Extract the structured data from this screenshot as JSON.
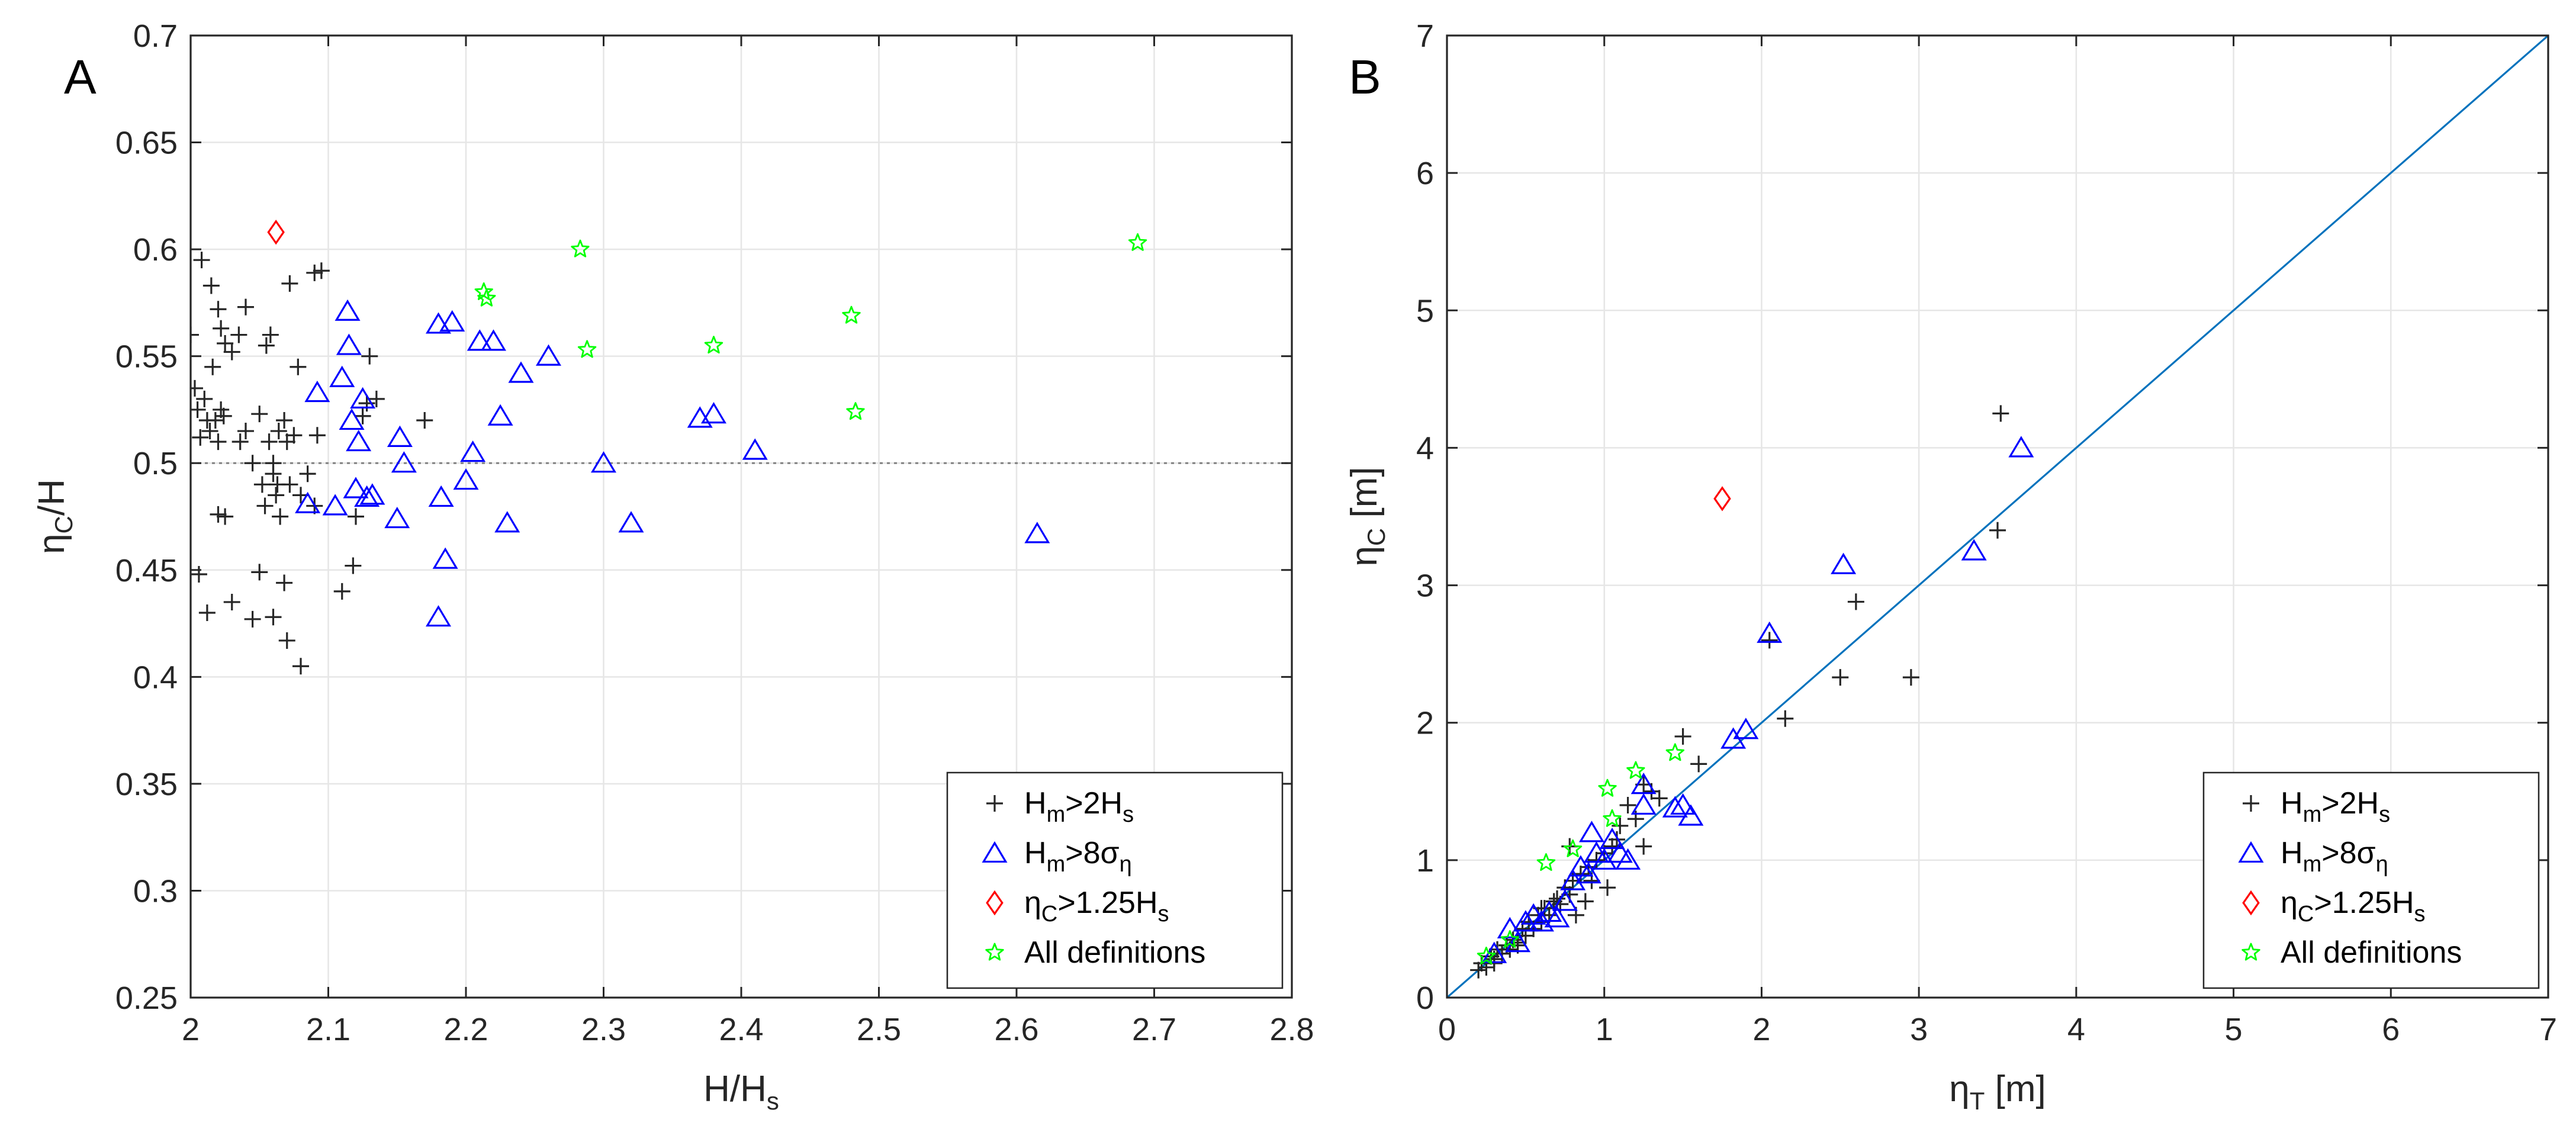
{
  "colors": {
    "black": "#262626",
    "blue": "#0000ff",
    "red": "#ff0000",
    "green": "#00ff00",
    "line": "#0072bd",
    "grid": "#e6e6e6",
    "refline": "#808080"
  },
  "chart_data": [
    {
      "type": "scatter",
      "panel_letter": "A",
      "xlabel": "H/H",
      "xlabel_sub": "s",
      "ylabel": "η",
      "ylabel_sub": "C",
      "ylabel_tail": "/H",
      "xlim": [
        2,
        2.8
      ],
      "ylim": [
        0.25,
        0.7
      ],
      "xticks": [
        2,
        2.1,
        2.2,
        2.3,
        2.4,
        2.5,
        2.6,
        2.7,
        2.8
      ],
      "xtick_labels": [
        "2",
        "2.1",
        "2.2",
        "2.3",
        "2.4",
        "2.5",
        "2.6",
        "2.7",
        "2.8"
      ],
      "yticks": [
        0.25,
        0.3,
        0.35,
        0.4,
        0.45,
        0.5,
        0.55,
        0.6,
        0.65,
        0.7
      ],
      "ytick_labels": [
        "0.25",
        "0.3",
        "0.35",
        "0.4",
        "0.45",
        "0.5",
        "0.55",
        "0.6",
        "0.65",
        "0.7"
      ],
      "grid": true,
      "reference_line": {
        "y": 0.5,
        "style": "dotted"
      },
      "legend_position": "bottom-right",
      "legend": [
        {
          "marker": "plus",
          "color": "black",
          "parts": [
            {
              "t": "H"
            },
            {
              "t": "m",
              "sub": true
            },
            {
              "t": ">2H"
            },
            {
              "t": "s",
              "sub": true
            }
          ]
        },
        {
          "marker": "triangle",
          "color": "blue",
          "parts": [
            {
              "t": "H"
            },
            {
              "t": "m",
              "sub": true
            },
            {
              "t": ">8σ"
            },
            {
              "t": "η",
              "sub": true
            }
          ]
        },
        {
          "marker": "diamond",
          "color": "red",
          "parts": [
            {
              "t": "η"
            },
            {
              "t": "C",
              "sub": true
            },
            {
              "t": ">1.25H"
            },
            {
              "t": "s",
              "sub": true
            }
          ]
        },
        {
          "marker": "star",
          "color": "green",
          "parts": [
            {
              "t": "All definitions"
            }
          ]
        }
      ],
      "series": [
        {
          "name": "Hm>2Hs",
          "marker": "plus",
          "color": "black",
          "points": [
            [
              2.0,
              0.56
            ],
            [
              2.003,
              0.535
            ],
            [
              2.005,
              0.525
            ],
            [
              2.007,
              0.512
            ],
            [
              2.008,
              0.595
            ],
            [
              2.01,
              0.53
            ],
            [
              2.012,
              0.52
            ],
            [
              2.014,
              0.515
            ],
            [
              2.016,
              0.545
            ],
            [
              2.018,
              0.52
            ],
            [
              2.02,
              0.51
            ],
            [
              2.022,
              0.525
            ],
            [
              2.024,
              0.522
            ],
            [
              2.006,
              0.448
            ],
            [
              2.012,
              0.43
            ],
            [
              2.015,
              0.583
            ],
            [
              2.02,
              0.572
            ],
            [
              2.022,
              0.563
            ],
            [
              2.025,
              0.556
            ],
            [
              2.03,
              0.552
            ],
            [
              2.035,
              0.56
            ],
            [
              2.04,
              0.573
            ],
            [
              2.036,
              0.51
            ],
            [
              2.04,
              0.515
            ],
            [
              2.045,
              0.5
            ],
            [
              2.05,
              0.523
            ],
            [
              2.052,
              0.49
            ],
            [
              2.054,
              0.48
            ],
            [
              2.057,
              0.51
            ],
            [
              2.06,
              0.495
            ],
            [
              2.062,
              0.485
            ],
            [
              2.065,
              0.475
            ],
            [
              2.064,
              0.515
            ],
            [
              2.068,
              0.52
            ],
            [
              2.07,
              0.51
            ],
            [
              2.072,
              0.49
            ],
            [
              2.075,
              0.513
            ],
            [
              2.055,
              0.555
            ],
            [
              2.058,
              0.56
            ],
            [
              2.025,
              0.475
            ],
            [
              2.02,
              0.476
            ],
            [
              2.03,
              0.435
            ],
            [
              2.045,
              0.427
            ],
            [
              2.05,
              0.449
            ],
            [
              2.06,
              0.428
            ],
            [
              2.068,
              0.444
            ],
            [
              2.07,
              0.417
            ],
            [
              2.08,
              0.405
            ],
            [
              2.072,
              0.584
            ],
            [
              2.09,
              0.589
            ],
            [
              2.095,
              0.59
            ],
            [
              2.078,
              0.545
            ],
            [
              2.085,
              0.495
            ],
            [
              2.09,
              0.48
            ],
            [
              2.092,
              0.513
            ],
            [
              2.11,
              0.44
            ],
            [
              2.118,
              0.452
            ],
            [
              2.12,
              0.475
            ],
            [
              2.125,
              0.522
            ],
            [
              2.128,
              0.528
            ],
            [
              2.13,
              0.55
            ],
            [
              2.135,
              0.53
            ],
            [
              2.17,
              0.52
            ],
            [
              2.06,
              0.5
            ],
            [
              2.063,
              0.49
            ],
            [
              2.08,
              0.485
            ]
          ]
        },
        {
          "name": "Hm>8ση",
          "marker": "triangle",
          "color": "blue",
          "points": [
            [
              2.085,
              0.481
            ],
            [
              2.092,
              0.533
            ],
            [
              2.105,
              0.48
            ],
            [
              2.11,
              0.54
            ],
            [
              2.114,
              0.571
            ],
            [
              2.115,
              0.555
            ],
            [
              2.117,
              0.52
            ],
            [
              2.12,
              0.488
            ],
            [
              2.122,
              0.51
            ],
            [
              2.125,
              0.53
            ],
            [
              2.128,
              0.484
            ],
            [
              2.132,
              0.485
            ],
            [
              2.15,
              0.474
            ],
            [
              2.152,
              0.512
            ],
            [
              2.155,
              0.5
            ],
            [
              2.18,
              0.565
            ],
            [
              2.182,
              0.484
            ],
            [
              2.185,
              0.455
            ],
            [
              2.18,
              0.428
            ],
            [
              2.19,
              0.566
            ],
            [
              2.2,
              0.492
            ],
            [
              2.205,
              0.505
            ],
            [
              2.21,
              0.557
            ],
            [
              2.22,
              0.557
            ],
            [
              2.225,
              0.522
            ],
            [
              2.23,
              0.472
            ],
            [
              2.24,
              0.542
            ],
            [
              2.26,
              0.55
            ],
            [
              2.3,
              0.5
            ],
            [
              2.32,
              0.472
            ],
            [
              2.37,
              0.521
            ],
            [
              2.38,
              0.523
            ],
            [
              2.41,
              0.506
            ],
            [
              2.615,
              0.467
            ]
          ]
        },
        {
          "name": "ηC>1.25Hs",
          "marker": "diamond",
          "color": "red",
          "points": [
            [
              2.062,
              0.608
            ]
          ]
        },
        {
          "name": "All definitions",
          "marker": "star",
          "color": "green",
          "points": [
            [
              2.213,
              0.58
            ],
            [
              2.215,
              0.577
            ],
            [
              2.283,
              0.6
            ],
            [
              2.288,
              0.553
            ],
            [
              2.38,
              0.555
            ],
            [
              2.48,
              0.569
            ],
            [
              2.483,
              0.524
            ],
            [
              2.688,
              0.603
            ]
          ]
        }
      ]
    },
    {
      "type": "scatter",
      "panel_letter": "B",
      "xlabel": "η",
      "xlabel_sub": "T",
      "xlabel_tail": " [m]",
      "ylabel": "η",
      "ylabel_sub": "C",
      "ylabel_tail": " [m]",
      "xlim": [
        0,
        7
      ],
      "ylim": [
        0,
        7
      ],
      "xticks": [
        0,
        1,
        2,
        3,
        4,
        5,
        6,
        7
      ],
      "xtick_labels": [
        "0",
        "1",
        "2",
        "3",
        "4",
        "5",
        "6",
        "7"
      ],
      "yticks": [
        0,
        1,
        2,
        3,
        4,
        5,
        6,
        7
      ],
      "ytick_labels": [
        "0",
        "1",
        "2",
        "3",
        "4",
        "5",
        "6",
        "7"
      ],
      "grid": true,
      "reference_line": {
        "from": [
          0,
          0
        ],
        "to": [
          7,
          7
        ],
        "style": "solid"
      },
      "legend_position": "bottom-right",
      "legend": [
        {
          "marker": "plus",
          "color": "black",
          "parts": [
            {
              "t": "H"
            },
            {
              "t": "m",
              "sub": true
            },
            {
              "t": ">2H"
            },
            {
              "t": "s",
              "sub": true
            }
          ]
        },
        {
          "marker": "triangle",
          "color": "blue",
          "parts": [
            {
              "t": "H"
            },
            {
              "t": "m",
              "sub": true
            },
            {
              "t": ">8σ"
            },
            {
              "t": "η",
              "sub": true
            }
          ]
        },
        {
          "marker": "diamond",
          "color": "red",
          "parts": [
            {
              "t": "η"
            },
            {
              "t": "C",
              "sub": true
            },
            {
              "t": ">1.25H"
            },
            {
              "t": "s",
              "sub": true
            }
          ]
        },
        {
          "marker": "star",
          "color": "green",
          "parts": [
            {
              "t": "All definitions"
            }
          ]
        }
      ],
      "series": [
        {
          "name": "Hm>2Hs",
          "marker": "plus",
          "color": "black",
          "points": [
            [
              0.2,
              0.2
            ],
            [
              0.22,
              0.25
            ],
            [
              0.25,
              0.22
            ],
            [
              0.28,
              0.3
            ],
            [
              0.3,
              0.28
            ],
            [
              0.32,
              0.35
            ],
            [
              0.35,
              0.32
            ],
            [
              0.38,
              0.38
            ],
            [
              0.4,
              0.35
            ],
            [
              0.42,
              0.42
            ],
            [
              0.45,
              0.4
            ],
            [
              0.48,
              0.5
            ],
            [
              0.5,
              0.45
            ],
            [
              0.52,
              0.55
            ],
            [
              0.55,
              0.5
            ],
            [
              0.58,
              0.6
            ],
            [
              0.6,
              0.55
            ],
            [
              0.62,
              0.65
            ],
            [
              0.65,
              0.6
            ],
            [
              0.68,
              0.7
            ],
            [
              0.7,
              0.72
            ],
            [
              0.72,
              0.68
            ],
            [
              0.75,
              0.8
            ],
            [
              0.78,
              0.75
            ],
            [
              0.8,
              0.85
            ],
            [
              0.82,
              0.6
            ],
            [
              0.85,
              0.9
            ],
            [
              0.88,
              0.7
            ],
            [
              0.9,
              0.95
            ],
            [
              0.92,
              0.85
            ],
            [
              0.95,
              1.0
            ],
            [
              1.0,
              1.05
            ],
            [
              1.02,
              0.8
            ],
            [
              1.05,
              1.1
            ],
            [
              1.08,
              1.15
            ],
            [
              1.1,
              1.25
            ],
            [
              1.15,
              1.4
            ],
            [
              1.2,
              1.3
            ],
            [
              1.25,
              1.1
            ],
            [
              1.3,
              1.5
            ],
            [
              1.35,
              1.45
            ],
            [
              1.5,
              1.9
            ],
            [
              1.6,
              1.7
            ],
            [
              1.25,
              1.55
            ],
            [
              2.05,
              2.6
            ],
            [
              2.15,
              2.03
            ],
            [
              2.5,
              2.33
            ],
            [
              2.6,
              2.88
            ],
            [
              2.95,
              2.33
            ],
            [
              3.5,
              3.4
            ],
            [
              3.52,
              4.25
            ],
            [
              0.78,
              1.1
            ],
            [
              0.6,
              0.65
            ],
            [
              0.45,
              0.38
            ],
            [
              0.3,
              0.25
            ]
          ]
        },
        {
          "name": "Hm>8ση",
          "marker": "triangle",
          "color": "blue",
          "points": [
            [
              0.3,
              0.32
            ],
            [
              0.4,
              0.5
            ],
            [
              0.45,
              0.4
            ],
            [
              0.5,
              0.55
            ],
            [
              0.55,
              0.6
            ],
            [
              0.6,
              0.55
            ],
            [
              0.65,
              0.62
            ],
            [
              0.7,
              0.58
            ],
            [
              0.75,
              0.7
            ],
            [
              0.8,
              0.85
            ],
            [
              0.85,
              0.95
            ],
            [
              0.9,
              0.9
            ],
            [
              0.92,
              1.2
            ],
            [
              0.95,
              1.05
            ],
            [
              1.0,
              1.0
            ],
            [
              1.05,
              1.15
            ],
            [
              1.1,
              1.05
            ],
            [
              1.15,
              1.0
            ],
            [
              1.25,
              1.4
            ],
            [
              1.25,
              1.55
            ],
            [
              1.45,
              1.38
            ],
            [
              1.5,
              1.4
            ],
            [
              1.55,
              1.32
            ],
            [
              1.82,
              1.88
            ],
            [
              1.9,
              1.95
            ],
            [
              2.05,
              2.65
            ],
            [
              2.52,
              3.15
            ],
            [
              3.35,
              3.25
            ],
            [
              3.65,
              4.0
            ]
          ]
        },
        {
          "name": "ηC>1.25Hs",
          "marker": "diamond",
          "color": "red",
          "points": [
            [
              1.75,
              3.63
            ]
          ]
        },
        {
          "name": "All definitions",
          "marker": "star",
          "color": "green",
          "points": [
            [
              0.25,
              0.3
            ],
            [
              0.4,
              0.42
            ],
            [
              0.63,
              0.98
            ],
            [
              0.8,
              1.08
            ],
            [
              1.02,
              1.52
            ],
            [
              1.05,
              1.3
            ],
            [
              1.2,
              1.65
            ],
            [
              1.45,
              1.78
            ]
          ]
        }
      ]
    }
  ]
}
